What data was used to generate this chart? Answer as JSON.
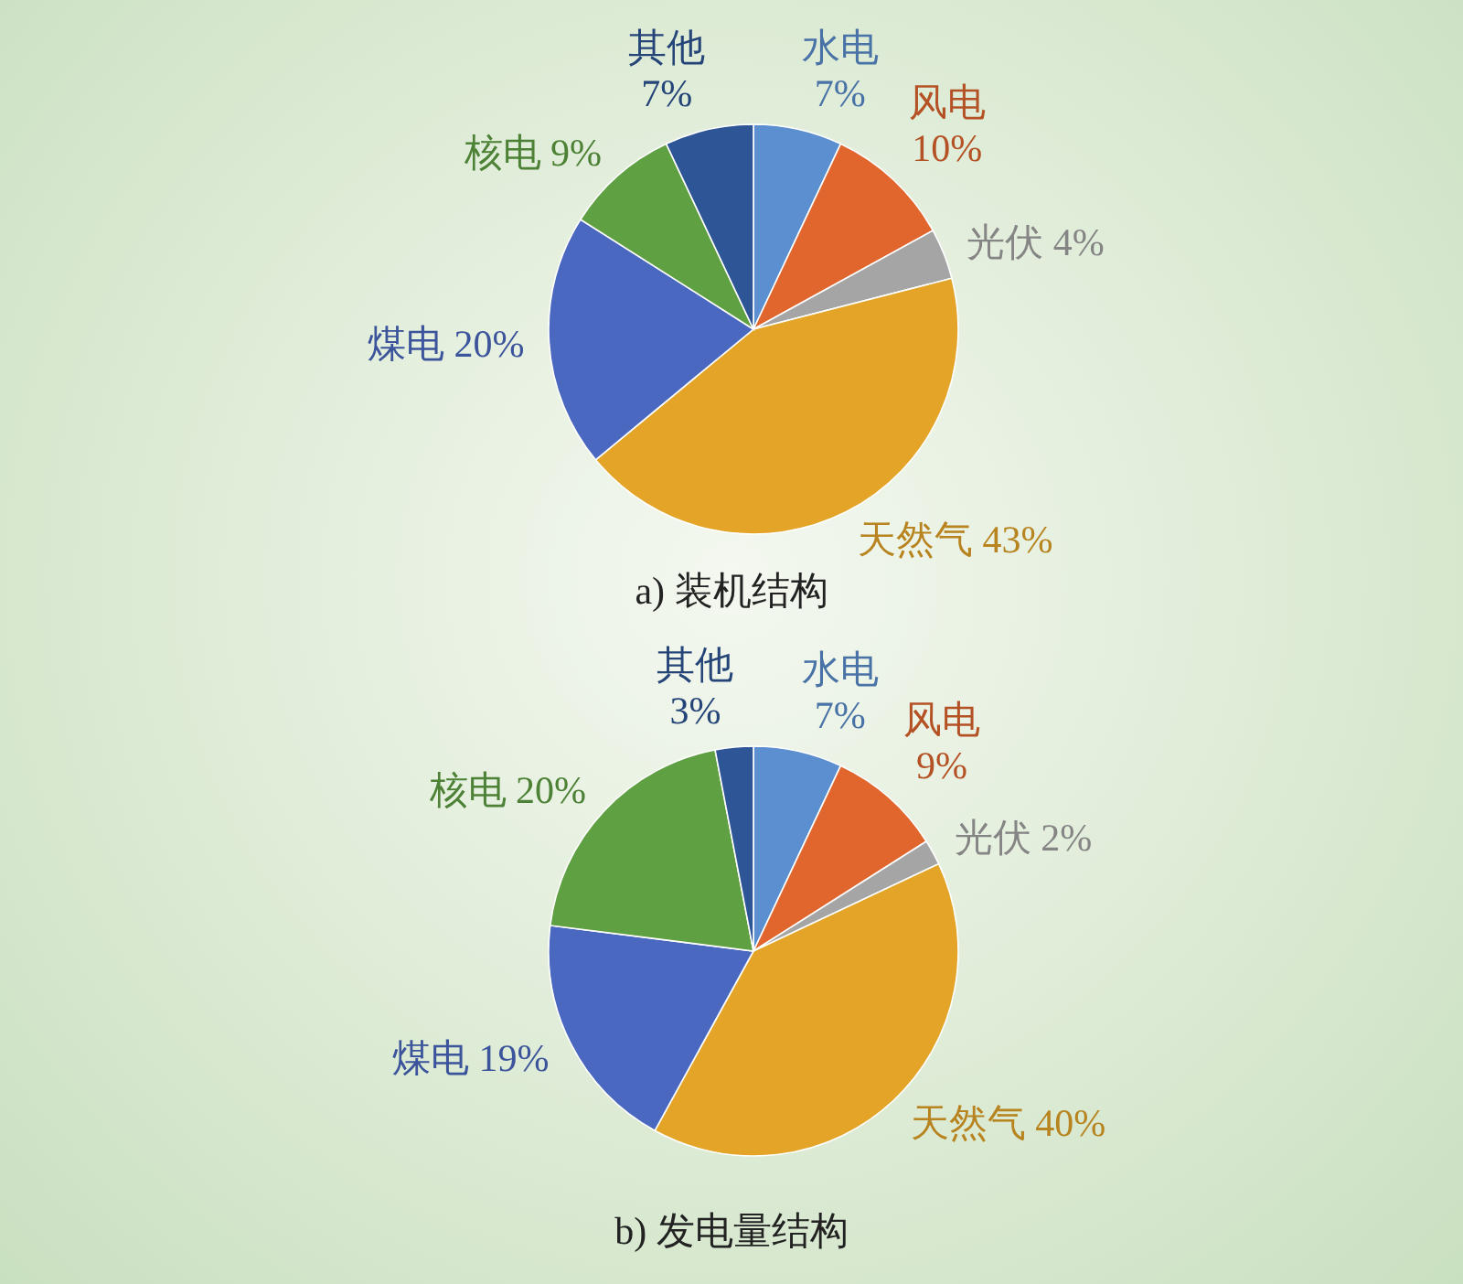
{
  "chart_data": [
    {
      "type": "pie",
      "title": "a) 装机结构",
      "categories": [
        "水电",
        "风电",
        "光伏",
        "天然气",
        "煤电",
        "核电",
        "其他"
      ],
      "values": [
        7,
        10,
        4,
        43,
        20,
        9,
        7
      ],
      "value_labels": [
        "7%",
        "10%",
        "4%",
        "43%",
        "20%",
        "9%",
        "7%"
      ],
      "colors": [
        "#5b8fcf",
        "#e0662e",
        "#a5a5a5",
        "#e3a428",
        "#4a68c0",
        "#5fa043",
        "#2e5596"
      ]
    },
    {
      "type": "pie",
      "title": "b) 发电量结构",
      "categories": [
        "水电",
        "风电",
        "光伏",
        "天然气",
        "煤电",
        "核电",
        "其他"
      ],
      "values": [
        7,
        9,
        2,
        40,
        19,
        20,
        3
      ],
      "value_labels": [
        "7%",
        "9%",
        "2%",
        "40%",
        "19%",
        "20%",
        "3%"
      ],
      "colors": [
        "#5b8fcf",
        "#e0662e",
        "#a5a5a5",
        "#e3a428",
        "#4a68c0",
        "#5fa043",
        "#2e5596"
      ]
    }
  ]
}
